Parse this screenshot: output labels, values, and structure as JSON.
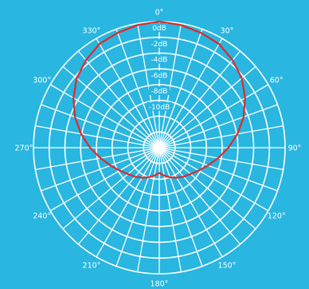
{
  "colors": {
    "background": "#29b6e0",
    "grid": "#ffffff",
    "pattern": "#e02a2a",
    "text": "#ffffff"
  },
  "chart_data": {
    "type": "polar-line",
    "title": "",
    "angle_labels": [
      "0°",
      "30°",
      "60°",
      "90°",
      "120°",
      "150°",
      "180°",
      "210°",
      "240°",
      "270°",
      "300°",
      "330°"
    ],
    "angle_label_degrees": [
      0,
      30,
      60,
      90,
      120,
      150,
      180,
      210,
      240,
      270,
      300,
      330
    ],
    "radial_ticks_db": [
      0,
      -2,
      -4,
      -6,
      -8,
      -10
    ],
    "radial_labels": [
      "0dB",
      "-2dB",
      "-4dB",
      "-6dB",
      "-8dB",
      "-10dB"
    ],
    "rlim_db": [
      -16,
      0
    ],
    "angular_gridline_step_deg": 10,
    "radial_gridline_step_db": 2,
    "grid": true,
    "series": [
      {
        "angles_deg": [
          0,
          10,
          20,
          30,
          40,
          50,
          60,
          70,
          80,
          90,
          100,
          110,
          120,
          130,
          140,
          150,
          160,
          170,
          180,
          190,
          200,
          210,
          220,
          230,
          240,
          250,
          260,
          270,
          280,
          290,
          300,
          310,
          320,
          330,
          340,
          350
        ],
        "values_db": [
          0,
          -0.2,
          -0.5,
          -0.8,
          -1.5,
          -2.3,
          -3.4,
          -4.6,
          -5.9,
          -7.2,
          -8.4,
          -9.4,
          -10.2,
          -10.8,
          -11.2,
          -11.6,
          -12.0,
          -12.4,
          -12.8,
          -12.4,
          -12.0,
          -11.6,
          -11.2,
          -10.8,
          -10.2,
          -9.4,
          -8.4,
          -7.2,
          -5.9,
          -4.6,
          -3.4,
          -2.3,
          -1.5,
          -0.8,
          -0.5,
          -0.2
        ]
      }
    ]
  }
}
